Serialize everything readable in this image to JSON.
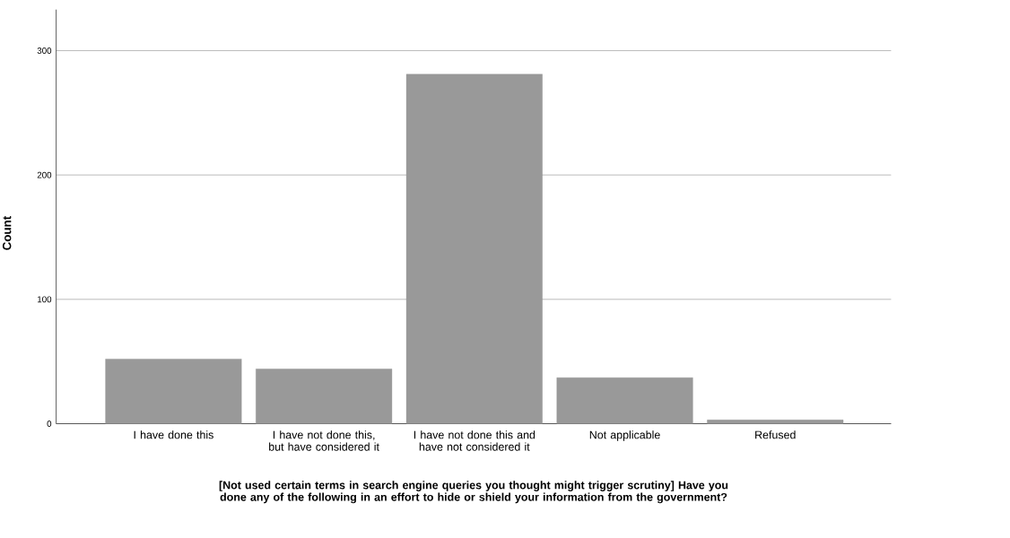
{
  "chart_data": {
    "type": "bar",
    "xlabel": "[Not used certain terms in search engine queries you thought might trigger scrutiny] Have you done any of the following in an effort to hide or shield your information from the government?",
    "ylabel": "Count",
    "categories": [
      "I have done this",
      "I have not done this, but have considered it",
      "I have not done this and have not considered it",
      "Not applicable",
      "Refused"
    ],
    "values": [
      52,
      44,
      281,
      37,
      3
    ],
    "color": "#999999",
    "ylim": [
      0,
      333
    ],
    "yticks": [
      0,
      100,
      200,
      300
    ],
    "grid": "y"
  }
}
